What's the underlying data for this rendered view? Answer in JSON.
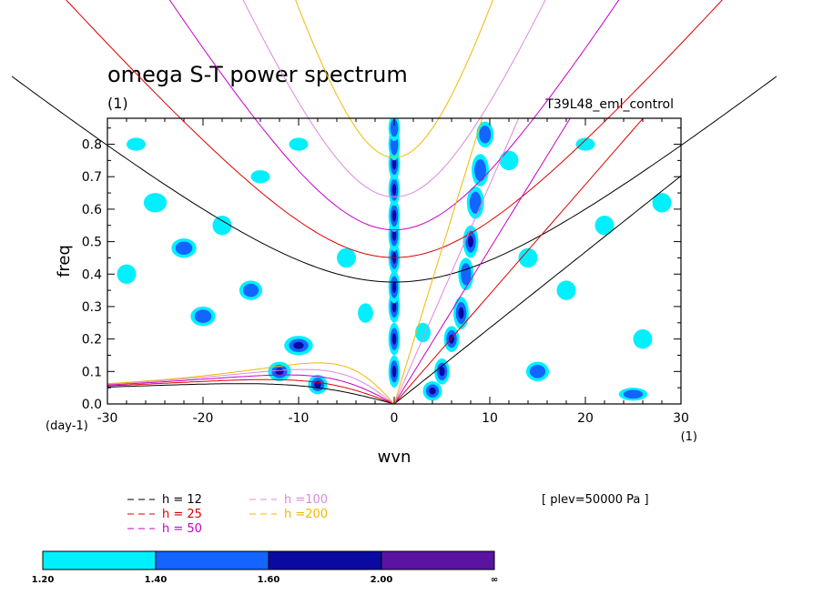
{
  "title": "omega S-T power spectrum",
  "subtitle_left": "(1)",
  "subtitle_right": "T39L48_eml_control",
  "level_note": "[ plev=50000 Pa ]",
  "chart_data": {
    "type": "line",
    "title": "omega S-T power spectrum",
    "xlabel": "wvn",
    "ylabel": "freq",
    "x_unit": "(1)",
    "y_unit": "(day-1)",
    "xlim": [
      -30,
      30
    ],
    "ylim": [
      0,
      0.88
    ],
    "x_ticks": [
      -30,
      -20,
      -10,
      0,
      10,
      20,
      30
    ],
    "x_tick_labels": [
      "-30",
      "-20",
      "-10",
      "0",
      "10",
      "20",
      "30"
    ],
    "y_ticks": [
      0.0,
      0.1,
      0.2,
      0.3,
      0.4,
      0.5,
      0.6,
      0.7,
      0.8
    ],
    "y_tick_labels": [
      "0.0",
      "0.1",
      "0.2",
      "0.3",
      "0.4",
      "0.5",
      "0.6",
      "0.7",
      "0.8"
    ],
    "series": [
      {
        "name": "h = 12",
        "color": "#000000",
        "equivalent_depth": 12
      },
      {
        "name": "h = 25",
        "color": "#dd0000",
        "equivalent_depth": 25
      },
      {
        "name": "h = 50",
        "color": "#c800c8",
        "equivalent_depth": 50
      },
      {
        "name": "h =100",
        "color": "#dd88dd",
        "equivalent_depth": 100
      },
      {
        "name": "h =200",
        "color": "#f0b800",
        "equivalent_depth": 200
      }
    ],
    "contour_levels": {
      "labels": [
        "1.20",
        "1.40",
        "1.60",
        "2.00",
        "∞"
      ],
      "colors": [
        "#00f0ff",
        "#1464ff",
        "#0a0aa0",
        "#5a14a0"
      ]
    },
    "contour_patches": [
      [
        0,
        0.1,
        0.6,
        0.05,
        3
      ],
      [
        0,
        0.2,
        0.6,
        0.05,
        3
      ],
      [
        0,
        0.3,
        0.6,
        0.05,
        3
      ],
      [
        0,
        0.36,
        0.6,
        0.05,
        3
      ],
      [
        0,
        0.45,
        0.6,
        0.05,
        3
      ],
      [
        0,
        0.52,
        0.6,
        0.05,
        3
      ],
      [
        0,
        0.58,
        0.6,
        0.05,
        3
      ],
      [
        0,
        0.66,
        0.6,
        0.05,
        3
      ],
      [
        0,
        0.74,
        0.6,
        0.05,
        3
      ],
      [
        0,
        0.8,
        0.6,
        0.05,
        2
      ],
      [
        0,
        0.85,
        0.6,
        0.04,
        2
      ],
      [
        5,
        0.1,
        0.8,
        0.04,
        3
      ],
      [
        6,
        0.2,
        0.8,
        0.04,
        3
      ],
      [
        7,
        0.28,
        0.8,
        0.05,
        3
      ],
      [
        7.5,
        0.4,
        0.8,
        0.05,
        2
      ],
      [
        8,
        0.5,
        0.8,
        0.05,
        3
      ],
      [
        8.5,
        0.62,
        0.9,
        0.05,
        2
      ],
      [
        9,
        0.72,
        0.9,
        0.05,
        2
      ],
      [
        9.5,
        0.83,
        0.9,
        0.04,
        2
      ],
      [
        4,
        0.04,
        1.0,
        0.03,
        3
      ],
      [
        -10,
        0.18,
        1.5,
        0.03,
        3
      ],
      [
        -12,
        0.1,
        1.2,
        0.03,
        3
      ],
      [
        -8,
        0.06,
        1.0,
        0.03,
        3
      ],
      [
        -20,
        0.27,
        1.3,
        0.03,
        2
      ],
      [
        -22,
        0.48,
        1.3,
        0.03,
        2
      ],
      [
        -25,
        0.62,
        1.2,
        0.03,
        1
      ],
      [
        -15,
        0.35,
        1.2,
        0.03,
        2
      ],
      [
        -18,
        0.55,
        1.0,
        0.03,
        1
      ],
      [
        -5,
        0.45,
        1.0,
        0.03,
        1
      ],
      [
        18,
        0.35,
        1.0,
        0.03,
        1
      ],
      [
        22,
        0.55,
        1.0,
        0.03,
        1
      ],
      [
        26,
        0.2,
        1.0,
        0.03,
        1
      ],
      [
        15,
        0.1,
        1.2,
        0.03,
        2
      ],
      [
        25,
        0.03,
        1.5,
        0.02,
        2
      ],
      [
        -28,
        0.4,
        1.0,
        0.03,
        1
      ],
      [
        -27,
        0.8,
        1.0,
        0.02,
        1
      ],
      [
        12,
        0.75,
        1.0,
        0.03,
        1
      ],
      [
        20,
        0.8,
        1.0,
        0.02,
        1
      ],
      [
        -10,
        0.8,
        1.0,
        0.02,
        1
      ],
      [
        -14,
        0.7,
        1.0,
        0.02,
        1
      ],
      [
        3,
        0.22,
        0.8,
        0.03,
        1
      ],
      [
        -3,
        0.28,
        0.8,
        0.03,
        1
      ],
      [
        14,
        0.45,
        1.0,
        0.03,
        1
      ],
      [
        28,
        0.62,
        1.0,
        0.03,
        1
      ]
    ]
  },
  "legend": {
    "items": [
      {
        "label": "h = 12",
        "color": "#000000"
      },
      {
        "label": "h = 25",
        "color": "#dd0000"
      },
      {
        "label": "h = 50",
        "color": "#c800c8"
      },
      {
        "label": "h =100",
        "color": "#dd88dd"
      },
      {
        "label": "h =200",
        "color": "#f0b800"
      }
    ]
  }
}
